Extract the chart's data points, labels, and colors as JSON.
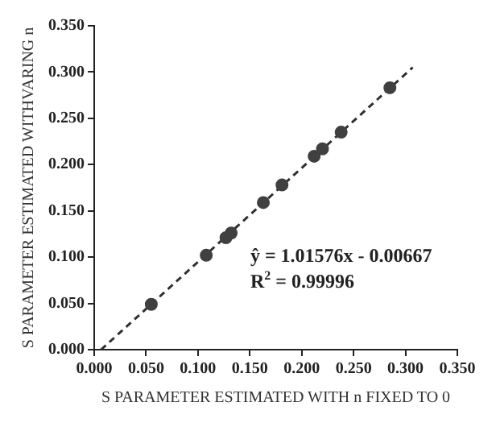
{
  "chart_data": {
    "type": "scatter",
    "xlabel": "S PARAMETER ESTIMATED WITH n FIXED TO 0",
    "ylabel": "S PARAMETER ESTIMATED WITHVARING n",
    "annotations": [
      "ŷ = 1.01576x - 0.00667",
      "R$^{2}$ = 0.99996"
    ],
    "series": [
      {
        "color": "#404040",
        "marker": "circle",
        "x": [
          0.055,
          0.108,
          0.127,
          0.132,
          0.163,
          0.181,
          0.212,
          0.22,
          0.238,
          0.285
        ],
        "values": [
          0.049,
          0.102,
          0.121,
          0.126,
          0.159,
          0.178,
          0.209,
          0.217,
          0.235,
          0.283
        ]
      },
      {
        "type": "line",
        "color": "#303030",
        "marker": "none",
        "line_style": "dashed",
        "x": [
          0.0066,
          0.307
        ],
        "values": [
          0,
          0.305
        ]
      }
    ],
    "xlim": [
      0,
      0.35
    ],
    "xticks": [
      {
        "value": 0,
        "label": "0.000"
      },
      {
        "value": 0.05,
        "label": "0.050"
      },
      {
        "value": 0.1,
        "label": "0.100"
      },
      {
        "value": 0.15,
        "label": "0.150"
      },
      {
        "value": 0.2,
        "label": "0.200"
      },
      {
        "value": 0.25,
        "label": "0.250"
      },
      {
        "value": 0.3,
        "label": "0.300"
      },
      {
        "value": 0.35,
        "label": "0.350"
      }
    ],
    "ylim": [
      0,
      0.35
    ],
    "yticks": [
      {
        "value": 0,
        "label": "0.000"
      },
      {
        "value": 0.05,
        "label": "0.050"
      },
      {
        "value": 0.1,
        "label": "0.100"
      },
      {
        "value": 0.15,
        "label": "0.150"
      },
      {
        "value": 0.2,
        "label": "0.200"
      },
      {
        "value": 0.25,
        "label": "0.250"
      },
      {
        "value": 0.3,
        "label": "0.300"
      },
      {
        "value": 0.35,
        "label": "0.350"
      }
    ],
    "grid": false,
    "legend": false
  }
}
